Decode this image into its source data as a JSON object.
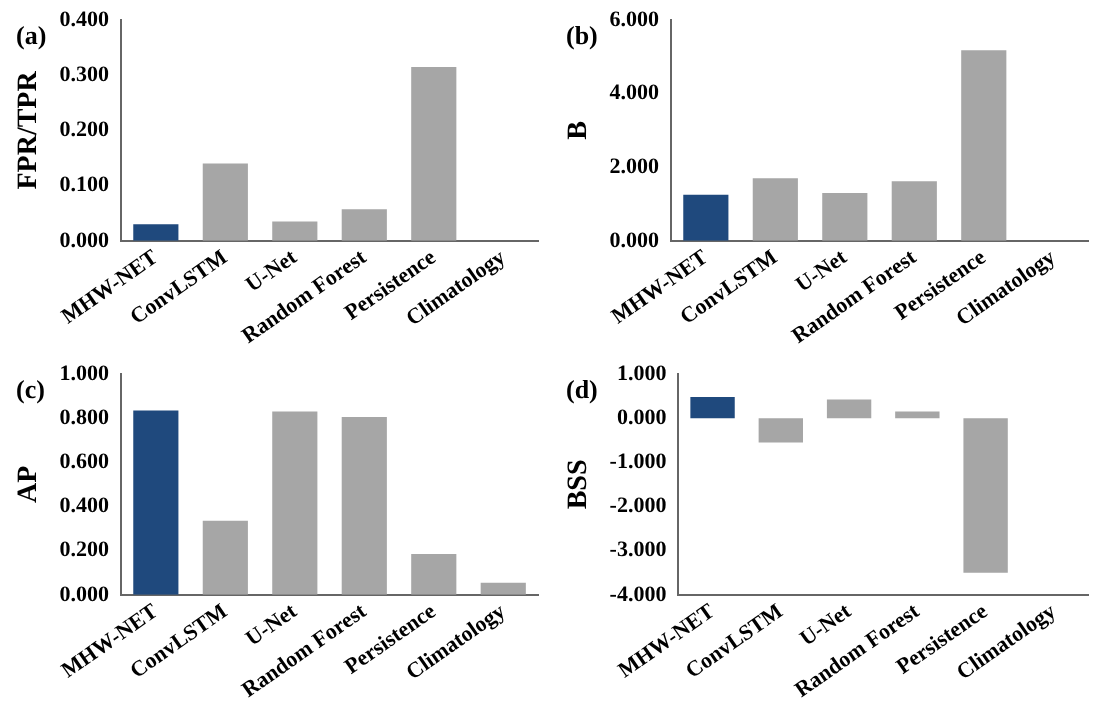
{
  "chart_data": [
    {
      "type": "bar",
      "ylabel": "FPR/TPR",
      "annotations": [
        "(a)"
      ],
      "categories": [
        "MHW-NET",
        "ConvLSTM",
        "U-Net",
        "Random Forest",
        "Persistence",
        "Climatology"
      ],
      "values": [
        0.03,
        0.14,
        0.035,
        0.057,
        0.315,
        0
      ],
      "colors": [
        "#1f497d",
        "#a6a6a6",
        "#a6a6a6",
        "#a6a6a6",
        "#a6a6a6",
        "#a6a6a6"
      ],
      "ylim": [
        0,
        0.4
      ],
      "yticks": [
        {
          "value": 0,
          "label": "0.000"
        },
        {
          "value": 0.1,
          "label": "0.100"
        },
        {
          "value": 0.2,
          "label": "0.200"
        },
        {
          "value": 0.3,
          "label": "0.300"
        },
        {
          "value": 0.4,
          "label": "0.400"
        }
      ],
      "grid": false,
      "legend": false
    },
    {
      "type": "bar",
      "ylabel": "B",
      "annotations": [
        "(b)"
      ],
      "categories": [
        "MHW-NET",
        "ConvLSTM",
        "U-Net",
        "Random Forest",
        "Persistence",
        "Climatology"
      ],
      "values": [
        1.25,
        1.7,
        1.3,
        1.62,
        5.18,
        0
      ],
      "colors": [
        "#1f497d",
        "#a6a6a6",
        "#a6a6a6",
        "#a6a6a6",
        "#a6a6a6",
        "#a6a6a6"
      ],
      "ylim": [
        0,
        6
      ],
      "yticks": [
        {
          "value": 0,
          "label": "0.000"
        },
        {
          "value": 2,
          "label": "2.000"
        },
        {
          "value": 4,
          "label": "4.000"
        },
        {
          "value": 6,
          "label": "6.000"
        }
      ],
      "grid": false,
      "legend": false
    },
    {
      "type": "bar",
      "ylabel": "AP",
      "annotations": [
        "(c)"
      ],
      "categories": [
        "MHW-NET",
        "ConvLSTM",
        "U-Net",
        "Random Forest",
        "Persistence",
        "Climatology"
      ],
      "values": [
        0.835,
        0.335,
        0.83,
        0.805,
        0.185,
        0.055
      ],
      "colors": [
        "#1f497d",
        "#a6a6a6",
        "#a6a6a6",
        "#a6a6a6",
        "#a6a6a6",
        "#a6a6a6"
      ],
      "ylim": [
        0,
        1
      ],
      "yticks": [
        {
          "value": 0,
          "label": "0.000"
        },
        {
          "value": 0.2,
          "label": "0.200"
        },
        {
          "value": 0.4,
          "label": "0.400"
        },
        {
          "value": 0.6,
          "label": "0.600"
        },
        {
          "value": 0.8,
          "label": "0.800"
        },
        {
          "value": 1,
          "label": "1.000"
        }
      ],
      "grid": false,
      "legend": false
    },
    {
      "type": "bar",
      "ylabel": "BSS",
      "annotations": [
        "(d)"
      ],
      "categories": [
        "MHW-NET",
        "ConvLSTM",
        "U-Net",
        "Random Forest",
        "Persistence",
        "Climatology"
      ],
      "values": [
        0.48,
        -0.55,
        0.42,
        0.15,
        -3.5,
        0
      ],
      "colors": [
        "#1f497d",
        "#a6a6a6",
        "#a6a6a6",
        "#a6a6a6",
        "#a6a6a6",
        "#a6a6a6"
      ],
      "ylim": [
        -4,
        1
      ],
      "yticks": [
        {
          "value": -4,
          "label": "-4.000"
        },
        {
          "value": -3,
          "label": "-3.000"
        },
        {
          "value": -2,
          "label": "-2.000"
        },
        {
          "value": -1,
          "label": "-1.000"
        },
        {
          "value": 0,
          "label": "0.000"
        },
        {
          "value": 1,
          "label": "1.000"
        }
      ],
      "grid": false,
      "legend": false
    }
  ]
}
